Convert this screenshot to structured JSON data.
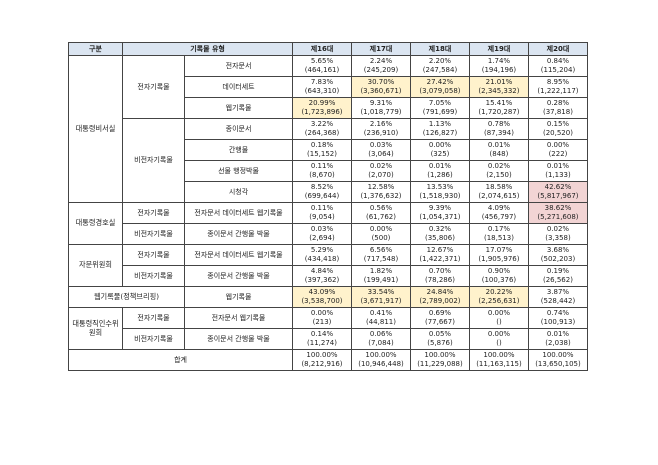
{
  "header": [
    "구분",
    "기록물 유형",
    "제16대",
    "제17대",
    "제18대",
    "제19대",
    "제20대"
  ],
  "highlight_colors": {
    "yellow": "#fff2cc",
    "pink": "#f2d4d4"
  },
  "groups": [
    {
      "name": "대통령비서실",
      "subgroups": [
        {
          "name": "전자기록물",
          "rows": [
            {
              "type": "전자문서",
              "cells": [
                {
                  "pct": "5.65%",
                  "count": "(464,161)"
                },
                {
                  "pct": "2.24%",
                  "count": "(245,209)"
                },
                {
                  "pct": "2.20%",
                  "count": "(247,584)"
                },
                {
                  "pct": "1.74%",
                  "count": "(194,196)"
                },
                {
                  "pct": "0.84%",
                  "count": "(115,204)"
                }
              ]
            },
            {
              "type": "데이터세트",
              "cells": [
                {
                  "pct": "7.83%",
                  "count": "(643,310)"
                },
                {
                  "pct": "30.70%",
                  "count": "(3,360,671)",
                  "fill": "yellow"
                },
                {
                  "pct": "27.42%",
                  "count": "(3,079,058)",
                  "fill": "yellow"
                },
                {
                  "pct": "21.01%",
                  "count": "(2,345,332)",
                  "fill": "yellow"
                },
                {
                  "pct": "8.95%",
                  "count": "(1,222,117)"
                }
              ]
            },
            {
              "type": "웹기록물",
              "cells": [
                {
                  "pct": "20.99%",
                  "count": "(1,723,896)",
                  "fill": "yellow"
                },
                {
                  "pct": "9.31%",
                  "count": "(1,018,779)"
                },
                {
                  "pct": "7.05%",
                  "count": "(791,699)"
                },
                {
                  "pct": "15.41%",
                  "count": "(1,720,287)"
                },
                {
                  "pct": "0.28%",
                  "count": "(37,818)"
                }
              ]
            }
          ]
        },
        {
          "name": "비전자기록물",
          "rows": [
            {
              "type": "종이문서",
              "cells": [
                {
                  "pct": "3.22%",
                  "count": "(264,368)"
                },
                {
                  "pct": "2.16%",
                  "count": "(236,910)"
                },
                {
                  "pct": "1.13%",
                  "count": "(126,827)"
                },
                {
                  "pct": "0.78%",
                  "count": "(87,394)"
                },
                {
                  "pct": "0.15%",
                  "count": "(20,520)"
                }
              ]
            },
            {
              "type": "간행물",
              "cells": [
                {
                  "pct": "0.18%",
                  "count": "(15,152)"
                },
                {
                  "pct": "0.03%",
                  "count": "(3,064)"
                },
                {
                  "pct": "0.00%",
                  "count": "(325)"
                },
                {
                  "pct": "0.01%",
                  "count": "(848)"
                },
                {
                  "pct": "0.00%",
                  "count": "(222)"
                }
              ]
            },
            {
              "type": "선물 행정박물",
              "cells": [
                {
                  "pct": "0.11%",
                  "count": "(8,670)"
                },
                {
                  "pct": "0.02%",
                  "count": "(2,070)"
                },
                {
                  "pct": "0.01%",
                  "count": "(1,286)"
                },
                {
                  "pct": "0.02%",
                  "count": "(2,150)"
                },
                {
                  "pct": "0.01%",
                  "count": "(1,133)"
                }
              ]
            },
            {
              "type": "시청각",
              "cells": [
                {
                  "pct": "8.52%",
                  "count": "(699,644)"
                },
                {
                  "pct": "12.58%",
                  "count": "(1,376,632)"
                },
                {
                  "pct": "13.53%",
                  "count": "(1,518,930)"
                },
                {
                  "pct": "18.58%",
                  "count": "(2,074,615)"
                },
                {
                  "pct": "42.62%",
                  "count": "(5,817,967)",
                  "fill": "pink"
                }
              ]
            }
          ]
        }
      ]
    },
    {
      "name": "대통령경호실",
      "subgroups": [
        {
          "name": "전자기록물",
          "rows": [
            {
              "type": "전자문서 데이터세트 웹기록물",
              "cells": [
                {
                  "pct": "0.11%",
                  "count": "(9,054)"
                },
                {
                  "pct": "0.56%",
                  "count": "(61,762)"
                },
                {
                  "pct": "9.39%",
                  "count": "(1,054,371)"
                },
                {
                  "pct": "4.09%",
                  "count": "(456,797)"
                },
                {
                  "pct": "38.62%",
                  "count": "(5,271,608)",
                  "fill": "pink"
                }
              ]
            }
          ]
        },
        {
          "name": "비전자기록물",
          "rows": [
            {
              "type": "종이문서 간행물 박물",
              "cells": [
                {
                  "pct": "0.03%",
                  "count": "(2,694)"
                },
                {
                  "pct": "0.00%",
                  "count": "(500)"
                },
                {
                  "pct": "0.32%",
                  "count": "(35,806)"
                },
                {
                  "pct": "0.17%",
                  "count": "(18,513)"
                },
                {
                  "pct": "0.02%",
                  "count": "(3,358)"
                }
              ]
            }
          ]
        }
      ]
    },
    {
      "name": "자문위원회",
      "subgroups": [
        {
          "name": "전자기록물",
          "rows": [
            {
              "type": "전자문서 데이터세트 웹기록물",
              "cells": [
                {
                  "pct": "5.29%",
                  "count": "(434,418)"
                },
                {
                  "pct": "6.56%",
                  "count": "(717,548)"
                },
                {
                  "pct": "12.67%",
                  "count": "(1,422,371)"
                },
                {
                  "pct": "17.07%",
                  "count": "(1,905,976)"
                },
                {
                  "pct": "3.68%",
                  "count": "(502,203)"
                }
              ]
            }
          ]
        },
        {
          "name": "비전자기록물",
          "rows": [
            {
              "type": "종이문서 간행물 박물",
              "cells": [
                {
                  "pct": "4.84%",
                  "count": "(397,362)"
                },
                {
                  "pct": "1.82%",
                  "count": "(199,491)"
                },
                {
                  "pct": "0.70%",
                  "count": "(78,286)"
                },
                {
                  "pct": "0.90%",
                  "count": "(100,376)"
                },
                {
                  "pct": "0.19%",
                  "count": "(26,562)"
                }
              ]
            }
          ]
        }
      ]
    },
    {
      "name": "웹기록물(정책브리핑)",
      "rows": [
        {
          "type": "웹기록물",
          "cells": [
            {
              "pct": "43.09%",
              "count": "(3,538,700)",
              "fill": "yellow"
            },
            {
              "pct": "33.54%",
              "count": "(3,671,917)",
              "fill": "yellow"
            },
            {
              "pct": "24.84%",
              "count": "(2,789,002)",
              "fill": "yellow"
            },
            {
              "pct": "20.22%",
              "count": "(2,256,631)",
              "fill": "yellow"
            },
            {
              "pct": "3.87%",
              "count": "(528,442)"
            }
          ]
        }
      ]
    },
    {
      "name": "대통령직인수위원회",
      "subgroups": [
        {
          "name": "전자기록물",
          "rows": [
            {
              "type": "전자문서 웹기록물",
              "cells": [
                {
                  "pct": "0.00%",
                  "count": "(213)"
                },
                {
                  "pct": "0.41%",
                  "count": "(44,811)"
                },
                {
                  "pct": "0.69%",
                  "count": "(77,667)"
                },
                {
                  "pct": "0.00%",
                  "count": "()"
                },
                {
                  "pct": "0.74%",
                  "count": "(100,913)"
                }
              ]
            }
          ]
        },
        {
          "name": "비전자기록물",
          "rows": [
            {
              "type": "종이문서 간행물 박물",
              "cells": [
                {
                  "pct": "0.14%",
                  "count": "(11,274)"
                },
                {
                  "pct": "0.06%",
                  "count": "(7,084)"
                },
                {
                  "pct": "0.05%",
                  "count": "(5,876)"
                },
                {
                  "pct": "0.00%",
                  "count": "()"
                },
                {
                  "pct": "0.01%",
                  "count": "(2,038)"
                }
              ]
            }
          ]
        }
      ]
    }
  ],
  "total": {
    "label": "합계",
    "cells": [
      {
        "pct": "100.00%",
        "count": "(8,212,916)"
      },
      {
        "pct": "100.00%",
        "count": "(10,946,448)"
      },
      {
        "pct": "100.00%",
        "count": "(11,229,088)"
      },
      {
        "pct": "100.00%",
        "count": "(11,163,115)"
      },
      {
        "pct": "100.00%",
        "count": "(13,650,105)"
      }
    ]
  }
}
